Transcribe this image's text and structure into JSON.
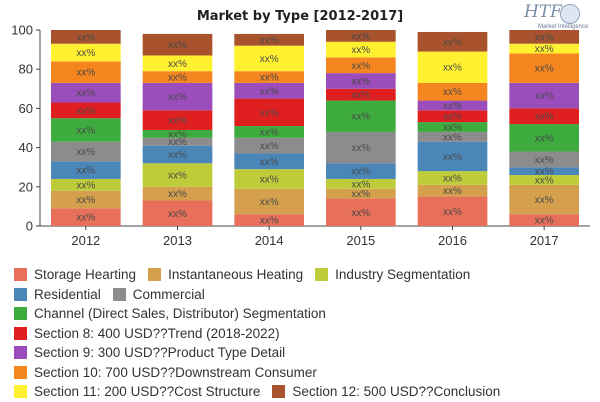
{
  "chart_data": {
    "type": "bar",
    "stacked": true,
    "title": "Market by Type [2012-2017]",
    "categories": [
      "2012",
      "2013",
      "2014",
      "2015",
      "2016",
      "2017"
    ],
    "ylim": [
      0,
      100
    ],
    "yticks": [
      0,
      20,
      40,
      60,
      80,
      100
    ],
    "grid": false,
    "legend_position": "bottom",
    "segment_label": "xx%",
    "series": [
      {
        "name": "Storage Hearting",
        "color": "#e8705a",
        "values": [
          9,
          13,
          6,
          14,
          15,
          6
        ]
      },
      {
        "name": "Instantaneous Heating",
        "color": "#d4a04e",
        "values": [
          9,
          7,
          13,
          5,
          6,
          15
        ]
      },
      {
        "name": "Industry Segmentation",
        "color": "#bfcc3a",
        "values": [
          6,
          12,
          10,
          5,
          7,
          5
        ]
      },
      {
        "name": "Residential",
        "color": "#4a86b8",
        "values": [
          9,
          9,
          8,
          8,
          15,
          4
        ]
      },
      {
        "name": "Commercial",
        "color": "#8c8c8c",
        "values": [
          10,
          4,
          8,
          16,
          5,
          8
        ]
      },
      {
        "name": "Channel (Direct Sales, Distributor) Segmentation",
        "color": "#3eab3e",
        "values": [
          12,
          4,
          6,
          16,
          5,
          14
        ]
      },
      {
        "name": "Section 8: 400 USD??Trend (2018-2022)",
        "color": "#e02020",
        "values": [
          8,
          10,
          14,
          6,
          6,
          8
        ]
      },
      {
        "name": "Section 9: 300 USD??Product Type Detail",
        "color": "#9b4dbb",
        "values": [
          10,
          14,
          8,
          8,
          5,
          13
        ]
      },
      {
        "name": "Section 10: 700 USD??Downstream Consumer",
        "color": "#f5861f",
        "values": [
          11,
          6,
          6,
          8,
          9,
          15
        ]
      },
      {
        "name": "Section 11: 200 USD??Cost Structure",
        "color": "#fff130",
        "values": [
          9,
          8,
          13,
          8,
          16,
          5
        ]
      },
      {
        "name": "Section 12: 500 USD??Conclusion",
        "color": "#a8532d",
        "values": [
          7,
          11,
          6,
          6,
          10,
          7
        ]
      }
    ]
  },
  "logo": {
    "text": "HTF",
    "subtitle": "Market Intelligence"
  }
}
